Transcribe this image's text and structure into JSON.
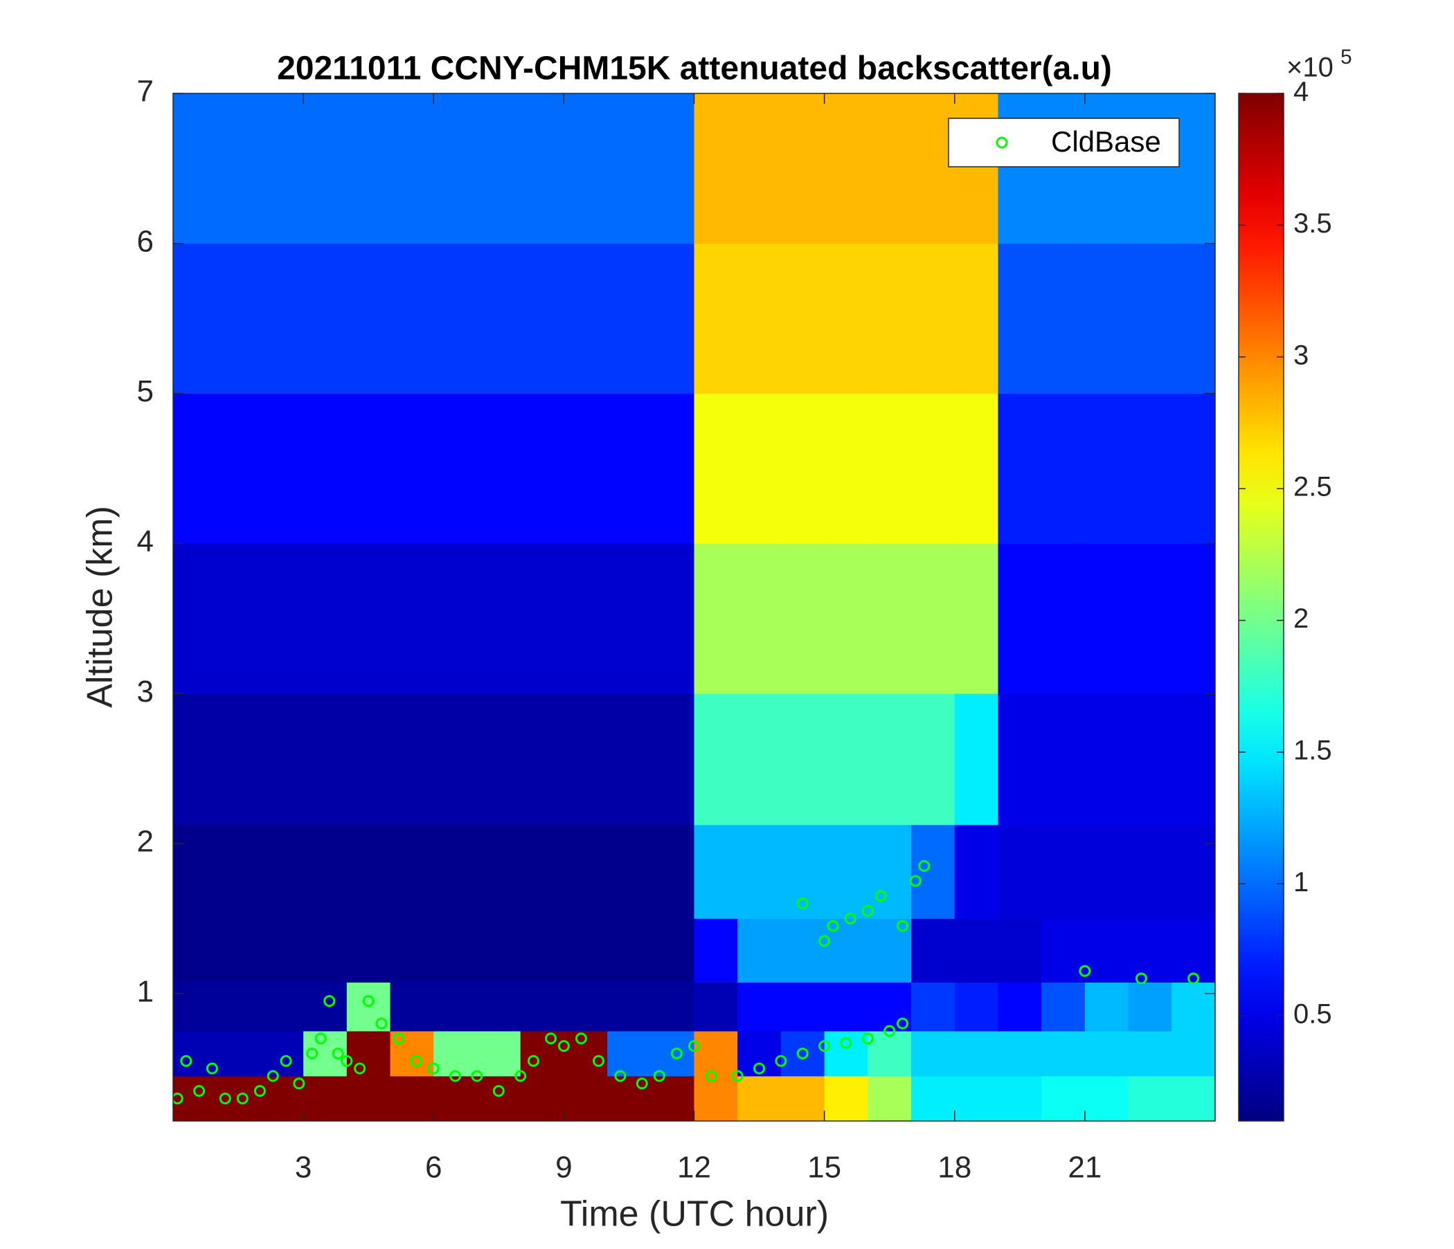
{
  "chart_data": {
    "type": "heatmap",
    "title": "20211011 CCNY-CHM15K attenuated backscatter(a.u)",
    "x_label": "Time (UTC hour)",
    "y_label": "Altitude (km)",
    "xlim": [
      0,
      24
    ],
    "xticks": [
      3,
      6,
      9,
      12,
      15,
      18,
      21
    ],
    "ylim": [
      0.15,
      7
    ],
    "yticks": [
      1,
      2,
      3,
      4,
      5,
      6,
      7
    ],
    "colormap": "jet",
    "clim": [
      0.1,
      4
    ],
    "cticks": [
      0.5,
      1,
      1.5,
      2,
      2.5,
      3,
      3.5,
      4
    ],
    "colorbar_multiplier_base": "×10",
    "colorbar_multiplier_exponent": "5",
    "x": [
      0.5,
      1.5,
      2.5,
      3.5,
      4.5,
      5.5,
      6.5,
      7.5,
      8.5,
      9.5,
      10.5,
      11.5,
      12.5,
      13.5,
      14.5,
      15.5,
      16.5,
      17.5,
      18.5,
      19.5,
      20.5,
      21.5,
      22.5,
      23.5
    ],
    "y": [
      0.3,
      0.6,
      0.9,
      1.25,
      1.75,
      2.5,
      3.5,
      4.5,
      5.5,
      6.5
    ],
    "z": [
      [
        4,
        4,
        4,
        4,
        4,
        4,
        4,
        4,
        4,
        4,
        4,
        4,
        3,
        2.8,
        2.8,
        2.6,
        2.2,
        1.5,
        1.5,
        1.5,
        1.6,
        1.6,
        1.7,
        1.7
      ],
      [
        0.3,
        0.3,
        0.3,
        2,
        4,
        3,
        2,
        2,
        4,
        4,
        1,
        1,
        3,
        0.5,
        0.8,
        1.5,
        1.8,
        1.4,
        1.4,
        1.4,
        1.4,
        1.4,
        1.4,
        1.4
      ],
      [
        0.2,
        0.2,
        0.2,
        0.2,
        2,
        0.2,
        0.2,
        0.2,
        0.2,
        0.2,
        0.2,
        0.2,
        0.3,
        0.6,
        0.6,
        0.6,
        0.6,
        0.8,
        0.7,
        0.6,
        0.9,
        1.3,
        1.2,
        1.4
      ],
      [
        0.15,
        0.15,
        0.15,
        0.15,
        0.15,
        0.15,
        0.15,
        0.15,
        0.15,
        0.15,
        0.15,
        0.15,
        0.6,
        1.2,
        1.2,
        1.2,
        1.2,
        0.4,
        0.4,
        0.4,
        0.5,
        0.5,
        0.5,
        0.5
      ],
      [
        0.15,
        0.15,
        0.15,
        0.15,
        0.15,
        0.15,
        0.15,
        0.15,
        0.15,
        0.15,
        0.15,
        0.15,
        1.3,
        1.3,
        1.3,
        1.3,
        1.3,
        1,
        0.5,
        0.45,
        0.45,
        0.45,
        0.45,
        0.45
      ],
      [
        0.25,
        0.25,
        0.25,
        0.25,
        0.25,
        0.25,
        0.25,
        0.25,
        0.25,
        0.25,
        0.25,
        0.25,
        1.8,
        1.8,
        1.8,
        1.8,
        1.8,
        1.8,
        1.5,
        0.5,
        0.5,
        0.5,
        0.5,
        0.5
      ],
      [
        0.4,
        0.4,
        0.4,
        0.4,
        0.4,
        0.4,
        0.4,
        0.4,
        0.4,
        0.4,
        0.4,
        0.4,
        2.2,
        2.2,
        2.2,
        2.2,
        2.2,
        2.2,
        2.2,
        0.6,
        0.6,
        0.6,
        0.6,
        0.6
      ],
      [
        0.6,
        0.6,
        0.6,
        0.6,
        0.6,
        0.6,
        0.6,
        0.6,
        0.6,
        0.6,
        0.6,
        0.6,
        2.5,
        2.5,
        2.5,
        2.5,
        2.5,
        2.5,
        2.5,
        0.7,
        0.7,
        0.7,
        0.7,
        0.7
      ],
      [
        0.8,
        0.8,
        0.8,
        0.8,
        0.8,
        0.8,
        0.8,
        0.8,
        0.8,
        0.8,
        0.8,
        0.8,
        2.7,
        2.7,
        2.7,
        2.7,
        2.7,
        2.7,
        2.7,
        0.9,
        0.9,
        0.9,
        0.9,
        0.9
      ],
      [
        1,
        1,
        1,
        1,
        1,
        1,
        1,
        1,
        1,
        1,
        1,
        1,
        2.8,
        2.8,
        2.8,
        2.8,
        2.8,
        2.8,
        2.8,
        1.1,
        1.1,
        1.1,
        1.1,
        1.1
      ]
    ],
    "legend": "upper right",
    "series": [
      {
        "name": "CldBase",
        "type": "scatter",
        "color": "#00ff00",
        "x": [
          0.1,
          0.3,
          0.6,
          0.9,
          1.2,
          1.6,
          2,
          2.3,
          2.6,
          2.9,
          3.2,
          3.4,
          3.6,
          3.8,
          4,
          4.3,
          4.5,
          4.8,
          5.2,
          5.6,
          6,
          6.5,
          7,
          7.5,
          8,
          8.3,
          8.7,
          9,
          9.4,
          9.8,
          10.3,
          10.8,
          11.2,
          11.6,
          12,
          12.4,
          13,
          13.5,
          14,
          14.5,
          15,
          15.5,
          16,
          16.5,
          16.8,
          14.5,
          15,
          15.2,
          15.6,
          16,
          16.3,
          16.8,
          17.1,
          17.3,
          21,
          22.3,
          23.5
        ],
        "values": [
          0.3,
          0.55,
          0.35,
          0.5,
          0.3,
          0.3,
          0.35,
          0.45,
          0.55,
          0.4,
          0.6,
          0.7,
          0.95,
          0.6,
          0.55,
          0.5,
          0.95,
          0.8,
          0.7,
          0.55,
          0.5,
          0.45,
          0.45,
          0.35,
          0.45,
          0.55,
          0.7,
          0.65,
          0.7,
          0.55,
          0.45,
          0.4,
          0.45,
          0.6,
          0.65,
          0.45,
          0.45,
          0.5,
          0.55,
          0.6,
          0.65,
          0.67,
          0.7,
          0.75,
          0.8,
          1.6,
          1.35,
          1.45,
          1.5,
          1.55,
          1.65,
          1.45,
          1.75,
          1.85,
          1.15,
          1.1,
          1.1
        ]
      }
    ]
  }
}
